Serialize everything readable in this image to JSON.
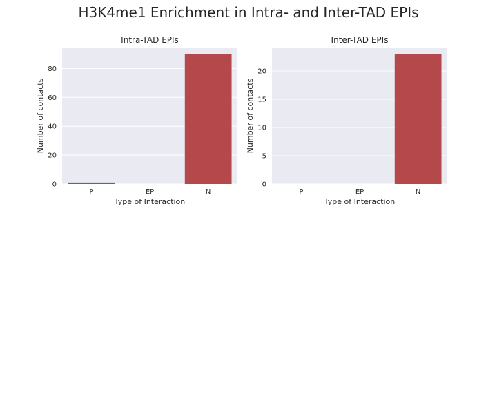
{
  "figure": {
    "title": "H3K4me1 Enrichment in Intra- and Inter-TAD EPIs"
  },
  "chart_data": [
    {
      "type": "bar",
      "title": "Intra-TAD EPIs",
      "xlabel": "Type of Interaction",
      "ylabel": "Number of contacts",
      "categories": [
        "P",
        "EP",
        "N"
      ],
      "values": [
        1,
        0,
        90
      ],
      "colors": [
        "#4c72b0",
        "#55a868",
        "#c44e52"
      ],
      "ylim": [
        0,
        94.5
      ],
      "yticks": [
        0,
        20,
        40,
        60,
        80
      ],
      "grid": true,
      "background": "#eaeaf2"
    },
    {
      "type": "bar",
      "title": "Inter-TAD EPIs",
      "xlabel": "Type of Interaction",
      "ylabel": "Number of contacts",
      "categories": [
        "P",
        "EP",
        "N"
      ],
      "values": [
        0,
        0,
        23
      ],
      "colors": [
        "#4c72b0",
        "#55a868",
        "#c44e52"
      ],
      "ylim": [
        0,
        24.15
      ],
      "yticks": [
        0,
        5,
        10,
        15,
        20
      ],
      "grid": true,
      "background": "#eaeaf2"
    }
  ]
}
